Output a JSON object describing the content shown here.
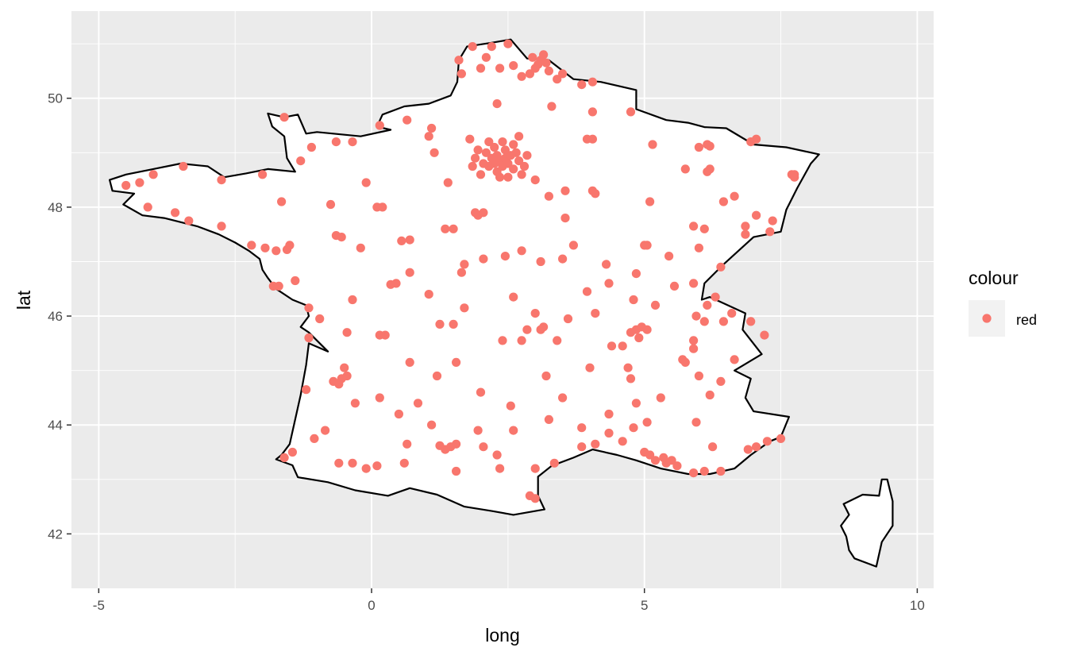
{
  "chart_data": {
    "type": "scatter",
    "title": "",
    "xlabel": "long",
    "ylabel": "lat",
    "xlim": [
      -5.5,
      10.3
    ],
    "ylim": [
      41.0,
      51.6
    ],
    "x_ticks": [
      -5,
      0,
      5,
      10
    ],
    "x_tick_labels": [
      "-5",
      "0",
      "5",
      "10"
    ],
    "y_ticks": [
      42,
      44,
      46,
      48,
      50
    ],
    "y_tick_labels": [
      "42",
      "44",
      "46",
      "48",
      "50"
    ],
    "grid": true,
    "panel_background": "#ebebeb",
    "point_color": "#f8766d",
    "outline_color": "#000000",
    "legend": {
      "title": "colour",
      "entries": [
        "red"
      ],
      "placement": "right"
    },
    "outline": [
      [
        [
          2.55,
          51.08
        ],
        [
          2.2,
          51.02
        ],
        [
          1.75,
          50.95
        ],
        [
          1.6,
          50.7
        ],
        [
          1.57,
          50.3
        ],
        [
          1.45,
          50.05
        ],
        [
          1.05,
          49.9
        ],
        [
          0.6,
          49.85
        ],
        [
          0.2,
          49.7
        ],
        [
          0.1,
          49.48
        ],
        [
          0.35,
          49.42
        ],
        [
          -0.2,
          49.3
        ],
        [
          -1.0,
          49.38
        ],
        [
          -1.2,
          49.35
        ],
        [
          -1.35,
          49.7
        ],
        [
          -1.6,
          49.65
        ],
        [
          -1.9,
          49.72
        ],
        [
          -1.82,
          49.48
        ],
        [
          -1.6,
          49.3
        ],
        [
          -1.55,
          48.9
        ],
        [
          -1.4,
          48.65
        ],
        [
          -1.9,
          48.7
        ],
        [
          -2.3,
          48.62
        ],
        [
          -2.7,
          48.55
        ],
        [
          -3.0,
          48.75
        ],
        [
          -3.5,
          48.8
        ],
        [
          -4.0,
          48.7
        ],
        [
          -4.5,
          48.6
        ],
        [
          -4.8,
          48.5
        ],
        [
          -4.75,
          48.3
        ],
        [
          -4.35,
          48.25
        ],
        [
          -4.55,
          48.05
        ],
        [
          -4.2,
          47.85
        ],
        [
          -3.8,
          47.8
        ],
        [
          -3.2,
          47.65
        ],
        [
          -2.8,
          47.5
        ],
        [
          -2.5,
          47.35
        ],
        [
          -2.25,
          47.2
        ],
        [
          -2.05,
          47.05
        ],
        [
          -2.0,
          46.85
        ],
        [
          -1.9,
          46.7
        ],
        [
          -1.75,
          46.5
        ],
        [
          -1.45,
          46.3
        ],
        [
          -1.2,
          46.2
        ],
        [
          -1.15,
          46.0
        ],
        [
          -1.3,
          45.8
        ],
        [
          -1.15,
          45.7
        ],
        [
          -0.8,
          45.35
        ],
        [
          -1.15,
          45.5
        ],
        [
          -1.2,
          45.1
        ],
        [
          -1.3,
          44.55
        ],
        [
          -1.4,
          44.1
        ],
        [
          -1.5,
          43.65
        ],
        [
          -1.65,
          43.45
        ],
        [
          -1.75,
          43.37
        ],
        [
          -1.45,
          43.26
        ],
        [
          -1.35,
          43.04
        ],
        [
          -0.8,
          42.95
        ],
        [
          -0.3,
          42.8
        ],
        [
          0.3,
          42.7
        ],
        [
          0.7,
          42.84
        ],
        [
          1.2,
          42.72
        ],
        [
          1.7,
          42.5
        ],
        [
          2.2,
          42.42
        ],
        [
          2.6,
          42.35
        ],
        [
          3.17,
          42.45
        ],
        [
          3.05,
          42.7
        ],
        [
          3.05,
          43.05
        ],
        [
          3.3,
          43.25
        ],
        [
          3.7,
          43.4
        ],
        [
          4.05,
          43.55
        ],
        [
          4.5,
          43.45
        ],
        [
          4.85,
          43.35
        ],
        [
          5.3,
          43.2
        ],
        [
          5.8,
          43.1
        ],
        [
          6.2,
          43.1
        ],
        [
          6.65,
          43.2
        ],
        [
          6.95,
          43.45
        ],
        [
          7.3,
          43.7
        ],
        [
          7.5,
          43.78
        ],
        [
          7.65,
          44.15
        ],
        [
          7.0,
          44.25
        ],
        [
          6.85,
          44.5
        ],
        [
          6.95,
          44.85
        ],
        [
          6.65,
          45.0
        ],
        [
          7.15,
          45.3
        ],
        [
          6.8,
          45.75
        ],
        [
          6.85,
          46.05
        ],
        [
          6.2,
          46.35
        ],
        [
          6.05,
          46.3
        ],
        [
          6.1,
          46.6
        ],
        [
          6.45,
          46.95
        ],
        [
          7.0,
          47.45
        ],
        [
          7.5,
          47.55
        ],
        [
          7.6,
          47.95
        ],
        [
          7.8,
          48.35
        ],
        [
          8.05,
          48.8
        ],
        [
          8.2,
          48.97
        ],
        [
          7.6,
          49.1
        ],
        [
          7.0,
          49.15
        ],
        [
          6.5,
          49.45
        ],
        [
          6.1,
          49.47
        ],
        [
          5.8,
          49.55
        ],
        [
          5.4,
          49.6
        ],
        [
          4.85,
          49.8
        ],
        [
          4.85,
          50.15
        ],
        [
          4.2,
          50.3
        ],
        [
          3.7,
          50.35
        ],
        [
          3.25,
          50.7
        ],
        [
          2.85,
          50.73
        ],
        [
          2.55,
          51.08
        ]
      ],
      [
        [
          9.45,
          43.0
        ],
        [
          9.55,
          42.6
        ],
        [
          9.55,
          42.15
        ],
        [
          9.35,
          41.85
        ],
        [
          9.25,
          41.4
        ],
        [
          8.85,
          41.55
        ],
        [
          8.75,
          41.7
        ],
        [
          8.7,
          41.95
        ],
        [
          8.6,
          42.15
        ],
        [
          8.75,
          42.35
        ],
        [
          8.65,
          42.55
        ],
        [
          9.0,
          42.72
        ],
        [
          9.3,
          42.7
        ],
        [
          9.35,
          43.0
        ],
        [
          9.45,
          43.0
        ]
      ]
    ],
    "points": [
      [
        2.35,
        48.85
      ],
      [
        2.25,
        48.8
      ],
      [
        2.45,
        48.9
      ],
      [
        2.3,
        48.95
      ],
      [
        2.4,
        48.75
      ],
      [
        2.2,
        48.9
      ],
      [
        2.5,
        48.8
      ],
      [
        2.15,
        48.75
      ],
      [
        2.55,
        48.95
      ],
      [
        2.6,
        48.7
      ],
      [
        2.3,
        48.65
      ],
      [
        2.1,
        49.0
      ],
      [
        2.05,
        48.8
      ],
      [
        2.7,
        48.85
      ],
      [
        2.45,
        49.05
      ],
      [
        2.25,
        49.1
      ],
      [
        1.9,
        48.9
      ],
      [
        2.65,
        49.0
      ],
      [
        2.35,
        48.55
      ],
      [
        2.8,
        48.75
      ],
      [
        2.0,
        48.6
      ],
      [
        2.5,
        48.55
      ],
      [
        1.95,
        49.05
      ],
      [
        2.6,
        49.15
      ],
      [
        2.75,
        48.6
      ],
      [
        2.15,
        49.2
      ],
      [
        2.4,
        49.2
      ],
      [
        1.85,
        48.75
      ],
      [
        2.85,
        48.95
      ],
      [
        2.7,
        49.3
      ],
      [
        3.05,
        50.62
      ],
      [
        3.1,
        50.7
      ],
      [
        3.2,
        50.65
      ],
      [
        2.95,
        50.75
      ],
      [
        3.25,
        50.5
      ],
      [
        2.9,
        50.45
      ],
      [
        3.15,
        50.8
      ],
      [
        3.0,
        50.55
      ],
      [
        2.75,
        50.4
      ],
      [
        3.4,
        50.35
      ],
      [
        3.5,
        50.45
      ],
      [
        2.35,
        50.55
      ],
      [
        2.6,
        50.6
      ],
      [
        2.1,
        50.75
      ],
      [
        2.5,
        51.0
      ],
      [
        2.2,
        50.95
      ],
      [
        1.6,
        50.7
      ],
      [
        1.65,
        50.45
      ],
      [
        1.85,
        50.95
      ],
      [
        2.0,
        50.55
      ],
      [
        4.05,
        50.3
      ],
      [
        3.85,
        50.25
      ],
      [
        2.3,
        49.9
      ],
      [
        3.3,
        49.85
      ],
      [
        4.05,
        49.75
      ],
      [
        1.1,
        49.45
      ],
      [
        1.05,
        49.3
      ],
      [
        0.15,
        49.5
      ],
      [
        0.65,
        49.6
      ],
      [
        -0.35,
        49.2
      ],
      [
        -0.65,
        49.2
      ],
      [
        -1.6,
        49.65
      ],
      [
        -1.1,
        49.1
      ],
      [
        -1.3,
        48.85
      ],
      [
        -1.65,
        48.1
      ],
      [
        -2.0,
        48.6
      ],
      [
        -2.75,
        48.5
      ],
      [
        -3.45,
        48.75
      ],
      [
        -4.0,
        48.6
      ],
      [
        -4.5,
        48.4
      ],
      [
        -4.25,
        48.45
      ],
      [
        -4.1,
        48.0
      ],
      [
        -3.6,
        47.9
      ],
      [
        -3.35,
        47.75
      ],
      [
        -2.75,
        47.65
      ],
      [
        -2.2,
        47.3
      ],
      [
        -1.55,
        47.22
      ],
      [
        -1.75,
        47.2
      ],
      [
        -1.5,
        47.3
      ],
      [
        -1.95,
        47.25
      ],
      [
        -1.8,
        46.55
      ],
      [
        -1.4,
        46.65
      ],
      [
        -1.15,
        46.15
      ],
      [
        -0.95,
        45.95
      ],
      [
        -1.15,
        45.6
      ],
      [
        -0.55,
        44.85
      ],
      [
        -0.6,
        44.75
      ],
      [
        -0.7,
        44.8
      ],
      [
        -0.45,
        44.9
      ],
      [
        -1.2,
        44.65
      ],
      [
        -1.05,
        43.75
      ],
      [
        -1.45,
        43.5
      ],
      [
        -1.6,
        43.4
      ],
      [
        -0.35,
        43.3
      ],
      [
        -0.1,
        43.2
      ],
      [
        0.1,
        43.25
      ],
      [
        0.65,
        43.65
      ],
      [
        1.45,
        43.6
      ],
      [
        1.35,
        43.55
      ],
      [
        1.55,
        43.65
      ],
      [
        1.25,
        43.62
      ],
      [
        2.35,
        43.2
      ],
      [
        2.9,
        42.7
      ],
      [
        3.0,
        42.65
      ],
      [
        3.0,
        43.2
      ],
      [
        3.35,
        43.3
      ],
      [
        3.85,
        43.6
      ],
      [
        4.35,
        43.85
      ],
      [
        4.8,
        43.95
      ],
      [
        5.0,
        43.5
      ],
      [
        5.4,
        43.3
      ],
      [
        5.35,
        43.4
      ],
      [
        5.5,
        43.35
      ],
      [
        5.6,
        43.25
      ],
      [
        5.9,
        43.12
      ],
      [
        6.1,
        43.15
      ],
      [
        6.4,
        43.15
      ],
      [
        6.9,
        43.55
      ],
      [
        7.25,
        43.7
      ],
      [
        7.05,
        43.6
      ],
      [
        7.5,
        43.75
      ],
      [
        6.25,
        43.6
      ],
      [
        5.1,
        43.45
      ],
      [
        5.2,
        43.35
      ],
      [
        4.6,
        43.7
      ],
      [
        4.1,
        43.65
      ],
      [
        5.05,
        44.05
      ],
      [
        4.85,
        44.4
      ],
      [
        4.7,
        45.05
      ],
      [
        4.85,
        45.75
      ],
      [
        4.75,
        45.7
      ],
      [
        4.95,
        45.8
      ],
      [
        4.9,
        45.6
      ],
      [
        5.05,
        45.75
      ],
      [
        4.6,
        45.45
      ],
      [
        4.4,
        45.45
      ],
      [
        5.7,
        45.2
      ],
      [
        5.75,
        45.15
      ],
      [
        5.9,
        45.55
      ],
      [
        6.1,
        45.9
      ],
      [
        6.45,
        45.9
      ],
      [
        6.15,
        46.2
      ],
      [
        5.95,
        46.0
      ],
      [
        5.05,
        47.3
      ],
      [
        5.0,
        47.3
      ],
      [
        5.45,
        47.1
      ],
      [
        6.0,
        47.25
      ],
      [
        6.4,
        46.9
      ],
      [
        5.9,
        46.6
      ],
      [
        4.85,
        46.78
      ],
      [
        4.3,
        46.95
      ],
      [
        4.1,
        46.05
      ],
      [
        3.95,
        46.45
      ],
      [
        3.1,
        45.75
      ],
      [
        3.15,
        45.8
      ],
      [
        2.85,
        45.75
      ],
      [
        3.4,
        45.55
      ],
      [
        2.4,
        45.55
      ],
      [
        1.5,
        45.85
      ],
      [
        1.25,
        45.85
      ],
      [
        0.15,
        45.65
      ],
      [
        -0.45,
        45.7
      ],
      [
        0.35,
        46.58
      ],
      [
        0.45,
        46.6
      ],
      [
        -0.35,
        46.3
      ],
      [
        -0.55,
        47.45
      ],
      [
        -0.65,
        47.48
      ],
      [
        0.7,
        47.4
      ],
      [
        0.55,
        47.38
      ],
      [
        1.35,
        47.6
      ],
      [
        1.9,
        47.9
      ],
      [
        1.95,
        47.85
      ],
      [
        2.05,
        47.9
      ],
      [
        1.5,
        47.6
      ],
      [
        1.4,
        48.45
      ],
      [
        0.1,
        48.0
      ],
      [
        0.2,
        48.0
      ],
      [
        -0.75,
        48.05
      ],
      [
        -0.1,
        48.45
      ],
      [
        1.15,
        49.0
      ],
      [
        1.8,
        49.25
      ],
      [
        3.25,
        48.2
      ],
      [
        3.55,
        47.8
      ],
      [
        3.0,
        48.5
      ],
      [
        3.55,
        48.3
      ],
      [
        4.05,
        48.3
      ],
      [
        4.1,
        48.25
      ],
      [
        4.05,
        49.25
      ],
      [
        3.95,
        49.25
      ],
      [
        4.75,
        49.75
      ],
      [
        5.15,
        49.15
      ],
      [
        5.1,
        48.1
      ],
      [
        5.75,
        48.7
      ],
      [
        6.2,
        48.7
      ],
      [
        6.15,
        48.65
      ],
      [
        6.0,
        49.1
      ],
      [
        6.2,
        49.12
      ],
      [
        6.15,
        49.15
      ],
      [
        6.95,
        49.2
      ],
      [
        7.05,
        49.25
      ],
      [
        7.7,
        48.6
      ],
      [
        7.75,
        48.55
      ],
      [
        7.35,
        47.75
      ],
      [
        7.3,
        47.55
      ],
      [
        6.85,
        47.65
      ],
      [
        7.75,
        48.6
      ],
      [
        6.65,
        48.2
      ],
      [
        6.45,
        48.1
      ],
      [
        5.9,
        47.65
      ],
      [
        6.1,
        47.6
      ],
      [
        6.85,
        47.5
      ],
      [
        7.05,
        47.85
      ],
      [
        3.1,
        47.0
      ],
      [
        3.7,
        47.3
      ],
      [
        3.5,
        47.05
      ],
      [
        2.75,
        47.2
      ],
      [
        2.45,
        47.1
      ],
      [
        2.05,
        47.05
      ],
      [
        1.65,
        46.8
      ],
      [
        1.7,
        46.95
      ],
      [
        1.7,
        46.15
      ],
      [
        2.6,
        46.35
      ],
      [
        3.0,
        46.05
      ],
      [
        3.2,
        44.9
      ],
      [
        3.5,
        44.5
      ],
      [
        3.25,
        44.1
      ],
      [
        2.55,
        44.35
      ],
      [
        2.0,
        44.6
      ],
      [
        1.95,
        43.9
      ],
      [
        1.1,
        44.0
      ],
      [
        0.85,
        44.4
      ],
      [
        0.5,
        44.2
      ],
      [
        0.15,
        44.5
      ],
      [
        -0.6,
        43.3
      ],
      [
        -0.85,
        43.9
      ],
      [
        -1.7,
        46.55
      ],
      [
        -0.2,
        47.25
      ],
      [
        0.7,
        46.8
      ],
      [
        1.05,
        46.4
      ],
      [
        4.0,
        45.05
      ],
      [
        5.3,
        44.5
      ],
      [
        5.95,
        44.05
      ],
      [
        6.2,
        44.55
      ],
      [
        6.65,
        45.2
      ],
      [
        6.95,
        45.9
      ],
      [
        7.2,
        45.65
      ],
      [
        6.6,
        46.05
      ],
      [
        6.3,
        46.35
      ],
      [
        5.55,
        46.55
      ],
      [
        5.2,
        46.2
      ],
      [
        4.8,
        46.3
      ],
      [
        4.35,
        46.6
      ],
      [
        3.6,
        45.95
      ],
      [
        2.75,
        45.55
      ],
      [
        1.55,
        45.15
      ],
      [
        1.2,
        44.9
      ],
      [
        0.7,
        45.15
      ],
      [
        0.25,
        45.65
      ],
      [
        -0.5,
        45.05
      ],
      [
        -0.3,
        44.4
      ],
      [
        0.6,
        43.3
      ],
      [
        1.55,
        43.15
      ],
      [
        2.05,
        43.6
      ],
      [
        2.3,
        43.45
      ],
      [
        2.6,
        43.9
      ],
      [
        3.85,
        43.95
      ],
      [
        4.35,
        44.2
      ],
      [
        4.75,
        44.85
      ],
      [
        5.9,
        45.4
      ],
      [
        6.0,
        44.9
      ],
      [
        6.4,
        44.8
      ]
    ]
  }
}
